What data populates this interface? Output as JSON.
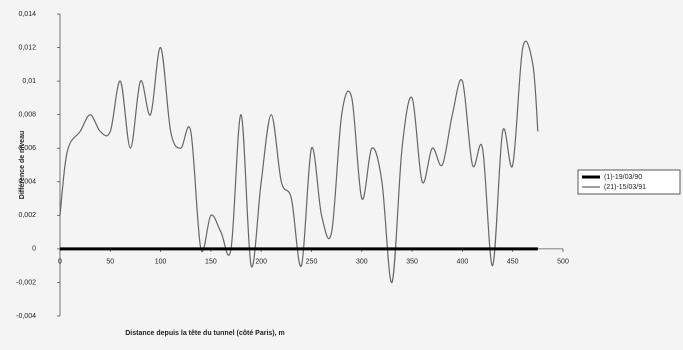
{
  "chart_data": {
    "type": "line",
    "x_label": "Distance depuis la tête du tunnel (côté Paris), m",
    "y_label": "Différence de niveau",
    "x": [
      0,
      5,
      10,
      20,
      30,
      40,
      50,
      60,
      70,
      80,
      90,
      100,
      110,
      120,
      130,
      140,
      150,
      160,
      170,
      180,
      190,
      200,
      210,
      220,
      230,
      240,
      250,
      260,
      270,
      280,
      290,
      300,
      310,
      320,
      330,
      340,
      350,
      360,
      370,
      380,
      390,
      400,
      410,
      420,
      430,
      440,
      450,
      460,
      470,
      475
    ],
    "series": [
      {
        "name": "(1)-19/03/90",
        "color": "#000000",
        "width": 3,
        "values": [
          0,
          0,
          0,
          0,
          0,
          0,
          0,
          0,
          0,
          0,
          0,
          0,
          0,
          0,
          0,
          0,
          0,
          0,
          0,
          0,
          0,
          0,
          0,
          0,
          0,
          0,
          0,
          0,
          0,
          0,
          0,
          0,
          0,
          0,
          0,
          0,
          0,
          0,
          0,
          0,
          0,
          0,
          0,
          0,
          0,
          0,
          0,
          0,
          0,
          0
        ]
      },
      {
        "name": "(21)-15/03/91",
        "color": "#666666",
        "width": 1.2,
        "values": [
          0.002,
          0.005,
          0.0063,
          0.007,
          0.008,
          0.007,
          0.007,
          0.01,
          0.006,
          0.01,
          0.008,
          0.012,
          0.007,
          0.006,
          0.007,
          0,
          0.002,
          0.001,
          0,
          0.008,
          -0.001,
          0.004,
          0.008,
          0.004,
          0.003,
          -0.001,
          0.006,
          0.002,
          0.001,
          0.008,
          0.009,
          0.003,
          0.006,
          0.004,
          -0.002,
          0.006,
          0.009,
          0.004,
          0.006,
          0.005,
          0.008,
          0.01,
          0.005,
          0.006,
          -0.001,
          0.007,
          0.005,
          0.012,
          0.011,
          0.007
        ]
      }
    ],
    "xlim": [
      0,
      500
    ],
    "xticks": [
      0,
      50,
      100,
      150,
      200,
      250,
      300,
      350,
      400,
      450,
      500
    ],
    "ylim": [
      -0.004,
      0.014
    ],
    "yticks": [
      {
        "value": -0.004,
        "label": "-0,004"
      },
      {
        "value": -0.002,
        "label": "-0,002"
      },
      0,
      {
        "value": 0.002,
        "label": "0,002"
      },
      {
        "value": 0.004,
        "label": "0,004"
      },
      {
        "value": 0.006,
        "label": "0,006"
      },
      {
        "value": 0.008,
        "label": "0,008"
      },
      {
        "value": 0.01,
        "label": "0,01"
      },
      {
        "value": 0.012,
        "label": "0,012"
      },
      {
        "value": 0.014,
        "label": "0,014"
      }
    ],
    "smooth": true,
    "legend": "right"
  }
}
